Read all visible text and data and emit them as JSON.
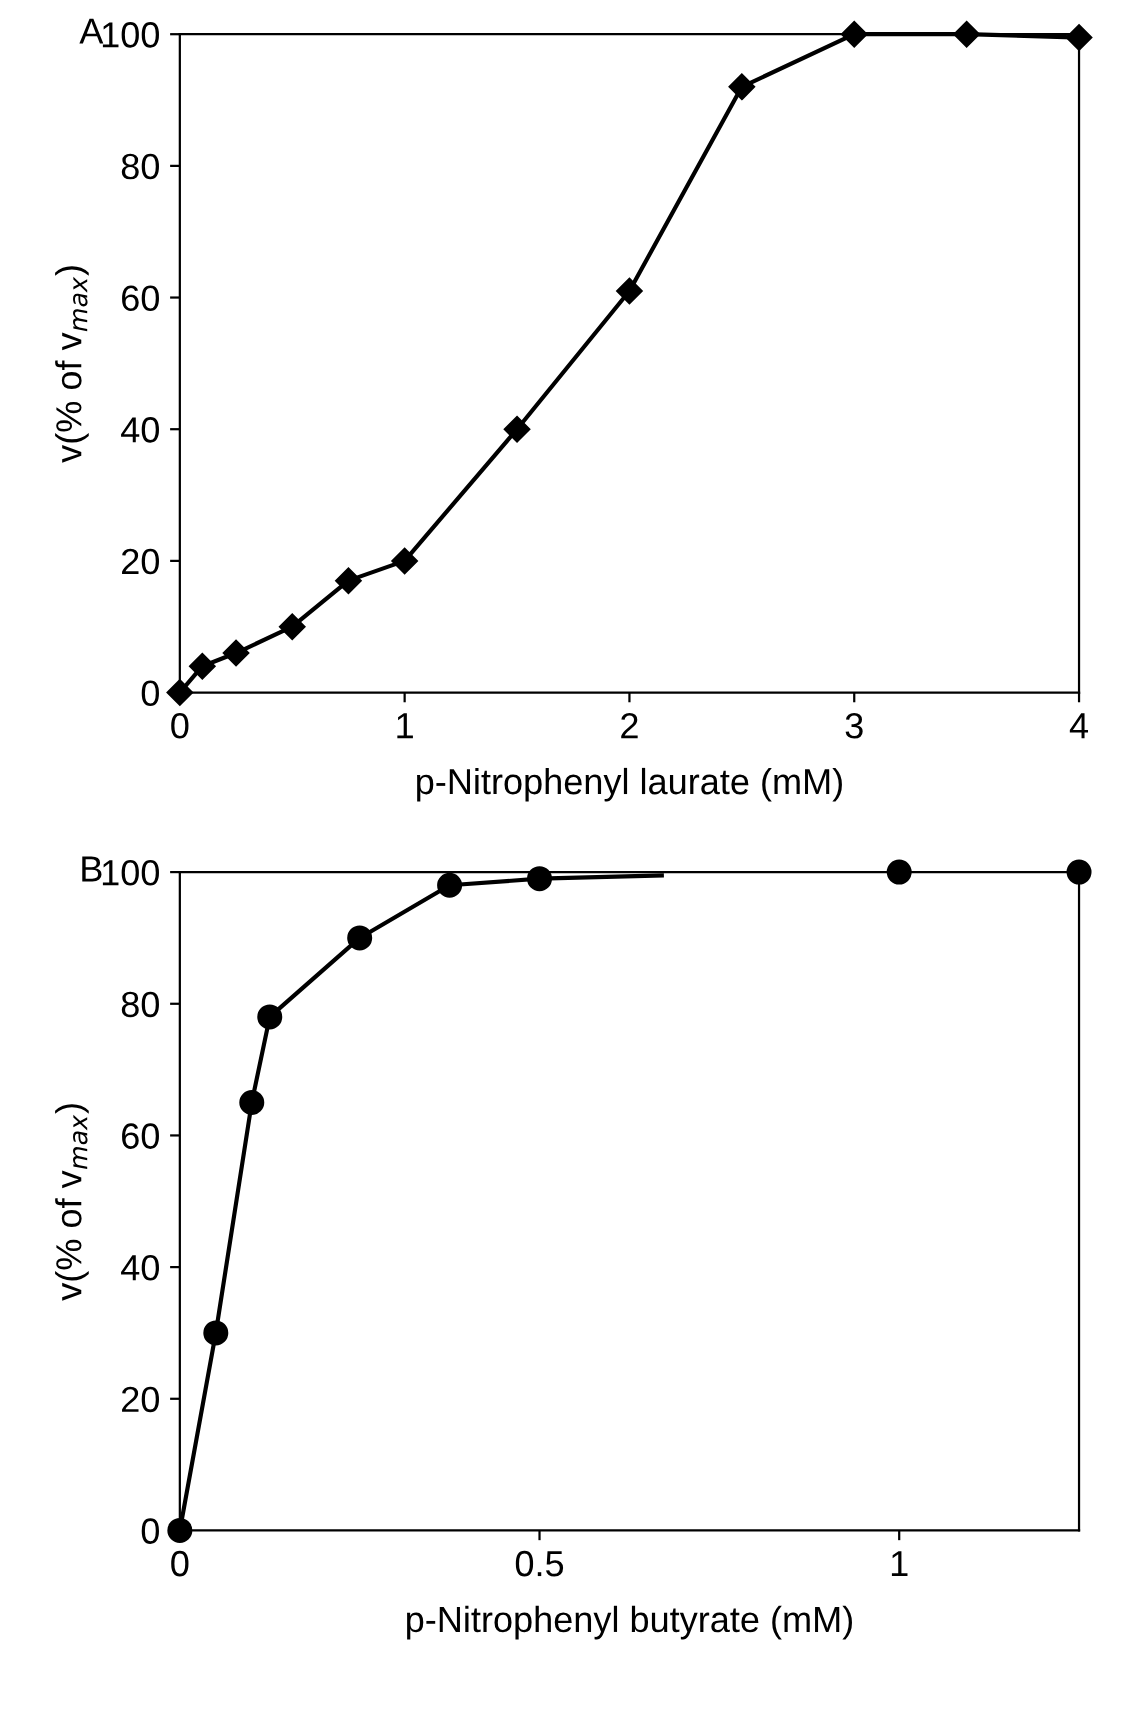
{
  "chart_data": [
    {
      "type": "line",
      "title": "A",
      "xlabel": "p-Nitrophenyl laurate (mM)",
      "ylabel": "v(% of v$_{max}$)",
      "xlim": [
        0,
        4
      ],
      "ylim": [
        0,
        100
      ],
      "xticks": [
        0,
        1,
        2,
        3,
        4
      ],
      "yticks": [
        0,
        20,
        40,
        60,
        80,
        100
      ],
      "grid": false,
      "legend": false,
      "marker": "diamond",
      "line_style": "solid",
      "series": [
        {
          "color": "#000000",
          "x": [
            0,
            0.1,
            0.25,
            0.5,
            0.75,
            1,
            1.5,
            2,
            2.5,
            3,
            3.5,
            4
          ],
          "values": [
            0,
            4,
            6,
            10,
            17,
            20,
            40,
            61,
            92,
            100,
            100,
            99.5
          ]
        }
      ]
    },
    {
      "type": "line",
      "title": "B",
      "xlabel": "p-Nitrophenyl butyrate (mM)",
      "ylabel": "v(% of v$_{max}$)",
      "xlim": [
        0,
        1.25
      ],
      "ylim": [
        0,
        100
      ],
      "xticks": [
        0,
        0.5,
        1
      ],
      "yticks": [
        0,
        20,
        40,
        60,
        80,
        100
      ],
      "grid": false,
      "legend": false,
      "line_style": "solid",
      "series": [
        {
          "type": "line",
          "marker": "none",
          "color": "#000000",
          "x": [
            0,
            0.05,
            0.1,
            0.125,
            0.25,
            0.375,
            0.5,
            0.67
          ],
          "values": [
            0,
            30,
            65,
            78,
            90,
            98,
            99,
            99.5
          ]
        },
        {
          "type": "scatter",
          "marker": "circle",
          "color": "#000000",
          "x": [
            0,
            0.05,
            0.1,
            0.125,
            0.25,
            0.375,
            0.5,
            1,
            1.25
          ],
          "values": [
            0,
            30,
            65,
            78,
            90,
            98,
            99,
            100,
            100
          ]
        }
      ]
    }
  ]
}
